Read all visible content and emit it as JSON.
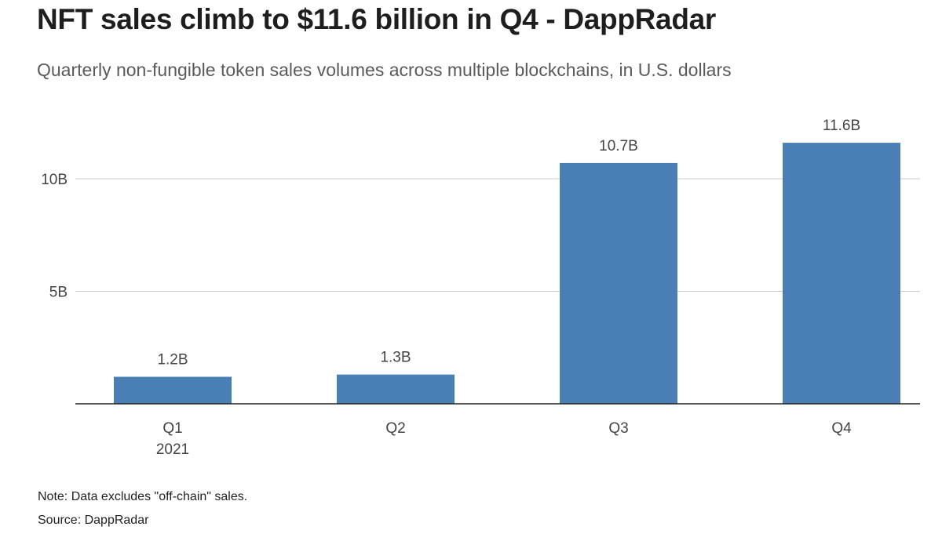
{
  "header": {
    "title": "NFT sales climb to $11.6 billion in Q4 - DappRadar",
    "subtitle": "Quarterly non-fungible token sales volumes across multiple blockchains, in U.S. dollars"
  },
  "footer": {
    "note": "Note: Data excludes \"off-chain\" sales.",
    "source": "Source: DappRadar"
  },
  "colors": {
    "bar": "#4a7fb5",
    "grid": "#cccccc",
    "axis": "#222222",
    "tick_text": "#444444"
  },
  "chart_data": {
    "type": "bar",
    "title": "NFT sales climb to $11.6 billion in Q4 - DappRadar",
    "subtitle": "Quarterly non-fungible token sales volumes across multiple blockchains, in U.S. dollars",
    "categories": [
      "Q1",
      "Q2",
      "Q3",
      "Q4"
    ],
    "category_sublabels": [
      "2021",
      "",
      "",
      ""
    ],
    "values": [
      1.2,
      1.3,
      10.7,
      11.6
    ],
    "value_labels": [
      "1.2B",
      "1.3B",
      "10.7B",
      "11.6B"
    ],
    "unit": "billion U.S. dollars",
    "xlabel": "",
    "ylabel": "",
    "ylim": [
      0,
      13
    ],
    "yticks": [
      5,
      10
    ],
    "ytick_labels": [
      "5B",
      "10B"
    ],
    "grid": true,
    "legend": "none"
  }
}
